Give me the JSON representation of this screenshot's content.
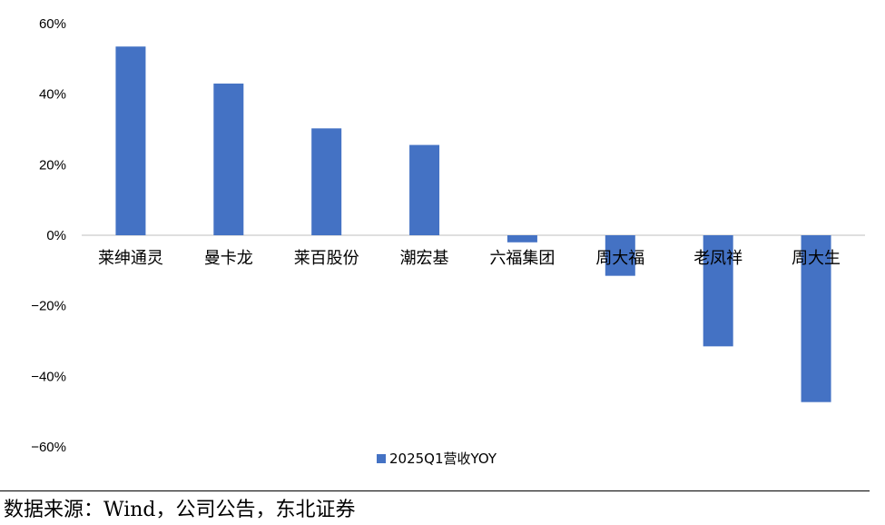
{
  "chart_data": {
    "type": "bar",
    "categories": [
      "莱绅通灵",
      "曼卡龙",
      "莱百股份",
      "潮宏基",
      "六福集团",
      "周大福",
      "老凤祥",
      "周大生"
    ],
    "series": [
      {
        "name": "2025Q1营收YOY",
        "values": [
          53.5,
          43.0,
          30.3,
          25.6,
          -2.0,
          -11.5,
          -31.5,
          -47.3
        ]
      }
    ],
    "yticks": [
      "60%",
      "40%",
      "20%",
      "0%",
      "−20%",
      "−40%",
      "−60%"
    ],
    "ylim": [
      -60,
      60
    ],
    "grid": false,
    "legend": "bottom-center",
    "bar_color": "#4472c4"
  },
  "source": "数据来源：Wind，公司公告，东北证券"
}
